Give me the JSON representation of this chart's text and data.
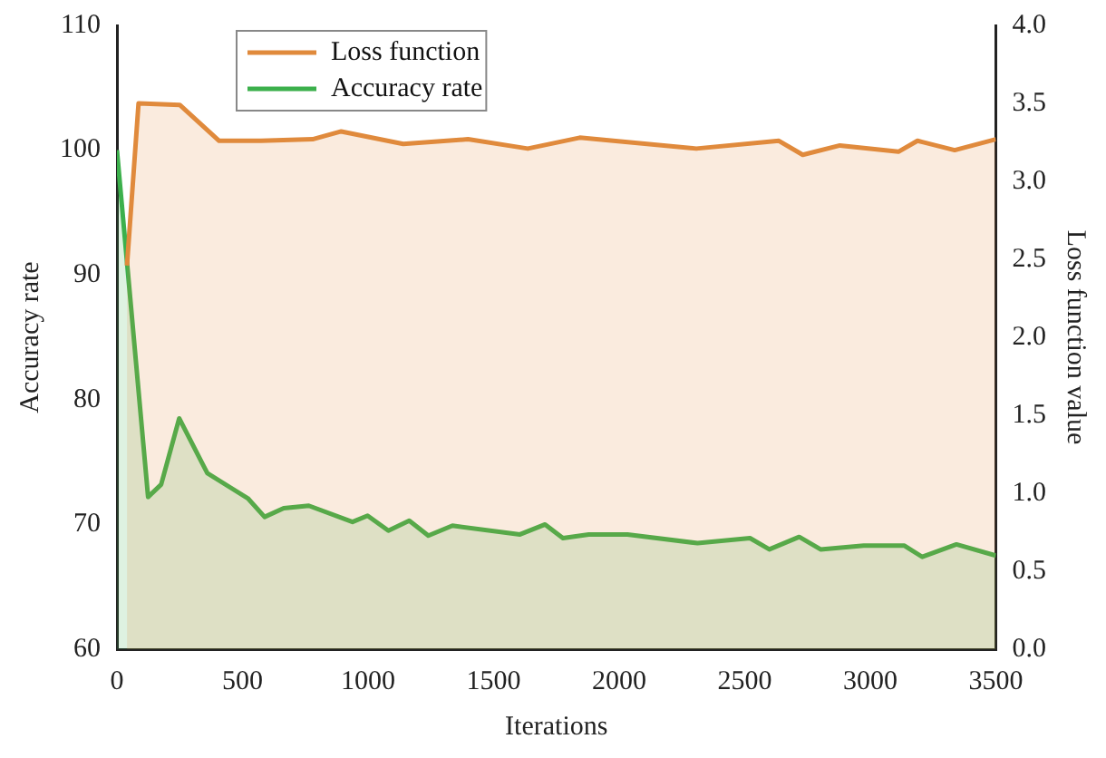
{
  "chart_data": {
    "type": "area",
    "xlabel": "Iterations",
    "ylabel": "Accuracy rate",
    "y2label": "Loss function value",
    "xlim": [
      0,
      3500
    ],
    "xticks": [
      0,
      500,
      1000,
      1500,
      2000,
      2500,
      3000,
      3500
    ],
    "ylim": [
      60,
      110
    ],
    "yticks": [
      60,
      70,
      80,
      90,
      100,
      110
    ],
    "y2lim": [
      0,
      4
    ],
    "y2ticks": [
      {
        "value": 0,
        "label": "0.0"
      },
      {
        "value": 0.5,
        "label": "0.5"
      },
      {
        "value": 1,
        "label": "1.0"
      },
      {
        "value": 1.5,
        "label": "1.5"
      },
      {
        "value": 2,
        "label": "2.0"
      },
      {
        "value": 2.5,
        "label": "2.5"
      },
      {
        "value": 3,
        "label": "3.0"
      },
      {
        "value": 3.5,
        "label": "3.5"
      },
      {
        "value": 4,
        "label": "4.0"
      }
    ],
    "legend": "top left",
    "grid": false,
    "marker": "none",
    "line_style": "solid",
    "series": [
      {
        "name": "Loss function",
        "color": "#e08a3c",
        "axis": "y2",
        "x": [
          40,
          86,
          250,
          407,
          574,
          779,
          893,
          1140,
          1398,
          1636,
          1843,
          2307,
          2636,
          2731,
          2879,
          3112,
          3188,
          3336,
          3500
        ],
        "values": [
          2.46,
          3.5,
          3.49,
          3.26,
          3.26,
          3.27,
          3.32,
          3.24,
          3.27,
          3.21,
          3.28,
          3.21,
          3.26,
          3.17,
          3.23,
          3.19,
          3.26,
          3.2,
          3.27
        ]
      },
      {
        "name": "Accuracy rate",
        "color": "#3cb04c",
        "axis": "y",
        "x": [
          0,
          124,
          176,
          248,
          360,
          521,
          588,
          664,
          764,
          938,
          998,
          1081,
          1164,
          1240,
          1336,
          1605,
          1705,
          1776,
          1879,
          2033,
          2312,
          2521,
          2598,
          2717,
          2802,
          2974,
          3136,
          3207,
          3343,
          3500
        ],
        "values": [
          100,
          72.2,
          73.2,
          78.5,
          74.1,
          72.1,
          70.6,
          71.3,
          71.5,
          70.2,
          70.7,
          69.5,
          70.3,
          69.1,
          69.9,
          69.2,
          70,
          68.9,
          69.2,
          69.2,
          68.5,
          68.9,
          68,
          69,
          68,
          68.3,
          68.3,
          67.4,
          68.4,
          67.5
        ]
      }
    ]
  }
}
